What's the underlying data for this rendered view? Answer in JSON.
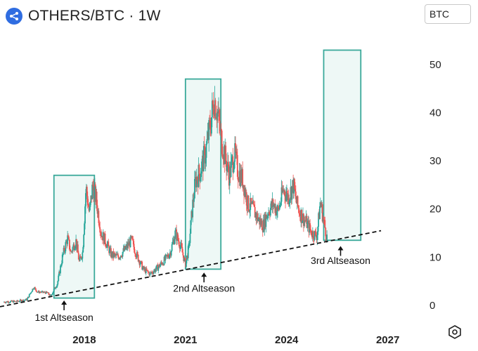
{
  "header": {
    "title": "OTHERS/BTC · 1W",
    "currency": "BTC",
    "logo_icon": "network-logo-icon"
  },
  "colors": {
    "up": "#26a69a",
    "down": "#ef5350",
    "box_stroke": "#3aa99a",
    "box_fill": "#e8f6f3",
    "trend": "#111111"
  },
  "chart_data": {
    "type": "candlestick",
    "title": "OTHERS/BTC · 1W",
    "ylabel": "",
    "xlabel": "",
    "ylim": [
      -2.5,
      57
    ],
    "xlim": [
      2015.5,
      2027.8
    ],
    "y_ticks": [
      0,
      10,
      20,
      30,
      40,
      50
    ],
    "x_ticks": [
      {
        "label": "2018",
        "value": 2018
      },
      {
        "label": "2021",
        "value": 2021
      },
      {
        "label": "2024",
        "value": 2024
      },
      {
        "label": "2027",
        "value": 2027
      }
    ],
    "grid": false,
    "price_path": [
      [
        2015.6,
        0.7
      ],
      [
        2016.0,
        0.8
      ],
      [
        2016.3,
        1.2
      ],
      [
        2016.5,
        3.8
      ],
      [
        2016.6,
        2.8
      ],
      [
        2016.9,
        2.6
      ],
      [
        2017.0,
        1.9
      ],
      [
        2017.2,
        4.5
      ],
      [
        2017.35,
        10.0
      ],
      [
        2017.5,
        14.0
      ],
      [
        2017.6,
        11.0
      ],
      [
        2017.75,
        13.5
      ],
      [
        2017.85,
        9.0
      ],
      [
        2017.95,
        11.0
      ],
      [
        2018.05,
        24.5
      ],
      [
        2018.15,
        19.0
      ],
      [
        2018.25,
        25.0
      ],
      [
        2018.35,
        22.0
      ],
      [
        2018.5,
        15.0
      ],
      [
        2018.65,
        13.0
      ],
      [
        2018.8,
        10.5
      ],
      [
        2019.0,
        10.0
      ],
      [
        2019.2,
        11.5
      ],
      [
        2019.4,
        13.5
      ],
      [
        2019.55,
        10.5
      ],
      [
        2019.75,
        7.5
      ],
      [
        2019.95,
        6.5
      ],
      [
        2020.2,
        8.0
      ],
      [
        2020.4,
        9.5
      ],
      [
        2020.55,
        11.0
      ],
      [
        2020.7,
        15.0
      ],
      [
        2020.85,
        12.5
      ],
      [
        2021.0,
        8.5
      ],
      [
        2021.1,
        12.0
      ],
      [
        2021.2,
        20.0
      ],
      [
        2021.3,
        26.0
      ],
      [
        2021.45,
        28.0
      ],
      [
        2021.6,
        32.0
      ],
      [
        2021.75,
        38.0
      ],
      [
        2021.85,
        43.0
      ],
      [
        2021.95,
        40.0
      ],
      [
        2022.05,
        35.0
      ],
      [
        2022.2,
        30.0
      ],
      [
        2022.3,
        27.0
      ],
      [
        2022.45,
        31.5
      ],
      [
        2022.55,
        28.0
      ],
      [
        2022.7,
        26.0
      ],
      [
        2022.85,
        21.0
      ],
      [
        2023.0,
        20.0
      ],
      [
        2023.15,
        18.0
      ],
      [
        2023.3,
        16.5
      ],
      [
        2023.45,
        19.5
      ],
      [
        2023.6,
        21.0
      ],
      [
        2023.75,
        19.5
      ],
      [
        2023.9,
        24.0
      ],
      [
        2024.05,
        22.5
      ],
      [
        2024.2,
        25.0
      ],
      [
        2024.3,
        21.0
      ],
      [
        2024.45,
        18.5
      ],
      [
        2024.6,
        17.0
      ],
      [
        2024.75,
        15.0
      ],
      [
        2024.9,
        14.5
      ],
      [
        2025.0,
        21.5
      ],
      [
        2025.1,
        17.5
      ],
      [
        2025.2,
        14.0
      ]
    ],
    "highlight_boxes": [
      {
        "x0": 2017.1,
        "x1": 2018.3,
        "y0": 1.5,
        "y1": 27.0
      },
      {
        "x0": 2021.0,
        "x1": 2022.05,
        "y0": 7.5,
        "y1": 47.0
      },
      {
        "x0": 2025.1,
        "x1": 2026.2,
        "y0": 13.5,
        "y1": 53.0
      }
    ],
    "trendline": {
      "x0": 2015.5,
      "y0": -0.3,
      "x1": 2026.8,
      "y1": 15.5,
      "style": "dashed"
    },
    "annotations": [
      {
        "text": "1st Altseason",
        "x": 2017.4,
        "y": -3.2,
        "arrow_to": 1.0
      },
      {
        "text": "2nd Altseason",
        "x": 2021.55,
        "y": 2.8,
        "arrow_to": 6.8
      },
      {
        "text": "3rd Altseason",
        "x": 2025.6,
        "y": 8.6,
        "arrow_to": 12.3
      }
    ]
  }
}
